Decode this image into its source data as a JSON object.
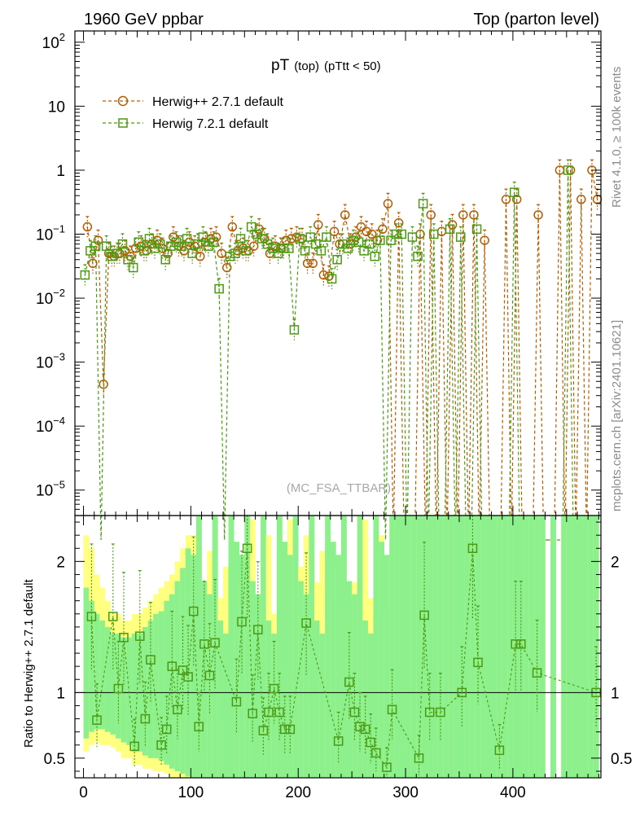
{
  "header": {
    "left": "1960 GeV ppbar",
    "right": "Top (parton level)"
  },
  "side_text": {
    "rivet": "Rivet 4.1.0, ≥ 100k events",
    "mcplots": "mcplots.cern.ch [arXiv:2401.10621]"
  },
  "watermark": "(MC_FSA_TTBAR)",
  "chart_data": [
    {
      "type": "scatter",
      "panel": "main",
      "title": "pT",
      "title_sub": "(top)",
      "title_cond": "(pTtt < 50)",
      "yscale": "log",
      "xlim": [
        -8,
        482
      ],
      "ylim": [
        4e-06,
        150
      ],
      "x_ticks": [
        "0",
        "100",
        "200",
        "300",
        "400"
      ],
      "y_ticks": [
        {
          "base": "10",
          "exp": "2",
          "value": 100
        },
        {
          "base": "10",
          "exp": "",
          "value": 10
        },
        {
          "base": "1",
          "exp": "",
          "value": 1
        },
        {
          "base": "10",
          "exp": "−1",
          "value": 0.1
        },
        {
          "base": "10",
          "exp": "−2",
          "value": 0.01
        },
        {
          "base": "10",
          "exp": "−3",
          "value": 0.001
        },
        {
          "base": "10",
          "exp": "−4",
          "value": 0.0001
        },
        {
          "base": "10",
          "exp": "−5",
          "value": 1e-05
        }
      ],
      "legend_position": "top-left",
      "series": [
        {
          "name": "Herwig++ 2.7.1 default",
          "color": "#b35c00",
          "marker": "circle",
          "x": [
            2.5,
            7.5,
            12.5,
            17.5,
            22.5,
            27.5,
            32.5,
            37.5,
            42.5,
            47.5,
            52.5,
            57.5,
            62.5,
            67.5,
            72.5,
            77.5,
            82.5,
            87.5,
            92.5,
            97.5,
            102.5,
            107.5,
            112.5,
            117.5,
            122.5,
            127.5,
            132.5,
            137.5,
            142.5,
            147.5,
            152.5,
            157.5,
            162.5,
            167.5,
            172.5,
            177.5,
            182.5,
            187.5,
            192.5,
            197.5,
            202.5,
            207.5,
            212.5,
            217.5,
            222.5,
            227.5,
            232.5,
            237.5,
            242.5,
            247.5,
            252.5,
            257.5,
            262.5,
            267.5,
            272.5,
            277.5,
            282.5,
            287.5,
            292.5,
            297.5,
            302.5,
            307.5,
            312.5,
            317.5,
            322.5,
            327.5,
            332.5,
            337.5,
            342.5,
            347.5,
            352.5,
            357.5,
            362.5,
            367.5,
            372.5,
            377.5,
            382.5,
            387.5,
            392.5,
            397.5,
            402.5,
            407.5,
            412.5,
            417.5,
            422.5,
            427.5,
            432.5,
            437.5,
            442.5,
            447.5,
            452.5,
            457.5,
            462.5,
            467.5,
            472.5,
            477.5
          ],
          "values": [
            0.13,
            0.035,
            0.08,
            0.00045,
            0.05,
            0.045,
            0.05,
            0.055,
            0.045,
            0.06,
            0.065,
            0.055,
            0.07,
            0.08,
            0.06,
            0.05,
            0.09,
            0.065,
            0.055,
            0.075,
            0.065,
            0.045,
            0.075,
            0.085,
            0.09,
            0.05,
            0.03,
            0.13,
            0.055,
            0.06,
            0.055,
            0.065,
            0.12,
            0.085,
            0.05,
            0.065,
            0.06,
            0.08,
            0.085,
            0.09,
            0.085,
            0.035,
            0.035,
            0.14,
            0.023,
            0.022,
            0.11,
            0.07,
            0.2,
            0.07,
            0.09,
            0.13,
            0.11,
            0.1,
            0.08,
            0.12,
            0.3,
            0.0,
            0.15,
            0.0,
            0.0,
            0.0,
            0.1,
            0.0,
            0.2,
            0.0,
            0.11,
            0.0,
            0.14,
            0.0,
            0.2,
            0.0,
            0.2,
            0.0,
            0.08,
            0.0,
            0.0,
            0.0,
            0.35,
            0.0,
            0.35,
            0.0,
            0.0,
            0.0,
            0.2,
            0.0,
            0.0,
            0.0,
            1.0,
            0.0,
            1.0,
            0.0,
            0.35,
            0.0,
            1.0,
            0.35
          ]
        },
        {
          "name": "Herwig 7.2.1 default",
          "color": "#4a9a12",
          "marker": "square",
          "x": [
            2.5,
            7.5,
            12.5,
            17.5,
            22.5,
            27.5,
            32.5,
            37.5,
            42.5,
            47.5,
            52.5,
            57.5,
            62.5,
            67.5,
            72.5,
            77.5,
            82.5,
            87.5,
            92.5,
            97.5,
            102.5,
            107.5,
            112.5,
            117.5,
            122.5,
            127.5,
            132.5,
            137.5,
            142.5,
            147.5,
            152.5,
            157.5,
            162.5,
            167.5,
            172.5,
            177.5,
            182.5,
            187.5,
            192.5,
            197.5,
            202.5,
            207.5,
            212.5,
            217.5,
            222.5,
            227.5,
            232.5,
            237.5,
            242.5,
            247.5,
            252.5,
            257.5,
            262.5,
            267.5,
            272.5,
            277.5,
            282.5,
            287.5,
            292.5,
            297.5,
            302.5,
            307.5,
            312.5,
            317.5,
            322.5,
            327.5,
            332.5,
            337.5,
            342.5,
            347.5,
            352.5,
            357.5,
            362.5,
            367.5,
            372.5,
            377.5,
            382.5,
            387.5,
            392.5,
            397.5,
            402.5,
            407.5,
            412.5,
            417.5,
            422.5,
            427.5,
            432.5,
            437.5,
            442.5,
            447.5,
            452.5,
            457.5,
            462.5,
            467.5,
            472.5,
            477.5
          ],
          "values": [
            0.023,
            0.055,
            0.065,
            0.0,
            0.065,
            0.045,
            0.05,
            0.07,
            0.04,
            0.03,
            0.075,
            0.055,
            0.085,
            0.06,
            0.07,
            0.04,
            0.065,
            0.075,
            0.065,
            0.085,
            0.05,
            0.07,
            0.09,
            0.065,
            0.075,
            0.014,
            0.0,
            0.045,
            0.05,
            0.085,
            0.055,
            0.13,
            0.1,
            0.085,
            0.07,
            0.06,
            0.05,
            0.06,
            0.06,
            0.0032,
            0.085,
            0.055,
            0.09,
            0.07,
            0.055,
            0.09,
            0.02,
            0.04,
            0.07,
            0.06,
            0.08,
            0.075,
            0.055,
            0.07,
            0.045,
            0.08,
            0.0,
            0.08,
            0.1,
            0.1,
            0.0,
            0.09,
            0.045,
            0.3,
            0.0,
            0.1,
            0.0,
            0.0,
            0.12,
            0.0,
            0.09,
            0.0,
            0.0,
            0.12,
            0.0,
            0.0,
            0.0,
            0.0,
            0.0,
            0.0,
            0.45,
            0.0,
            0.0,
            0.0,
            0.0,
            0.0,
            0.0,
            0.0,
            0.0,
            0.0,
            1.0,
            0.0,
            0.0,
            0.0,
            0.0,
            0.0
          ]
        }
      ]
    },
    {
      "type": "scatter",
      "panel": "ratio",
      "ylabel": "Ratio to Herwig++ 2.7.1 default",
      "xlim": [
        -8,
        482
      ],
      "ylim": [
        0.35,
        2.35
      ],
      "y_ticks": [
        "2",
        "1",
        "0.5"
      ],
      "y_tick_values": [
        2,
        1,
        0.5
      ],
      "reference_line": 1,
      "x": [
        7.5,
        12.5,
        27.5,
        32.5,
        37.5,
        47.5,
        52.5,
        57.5,
        62.5,
        72.5,
        77.5,
        82.5,
        87.5,
        92.5,
        97.5,
        102.5,
        107.5,
        112.5,
        117.5,
        122.5,
        142.5,
        147.5,
        152.5,
        157.5,
        162.5,
        167.5,
        172.5,
        177.5,
        182.5,
        187.5,
        192.5,
        207.5,
        237.5,
        247.5,
        252.5,
        257.5,
        262.5,
        267.5,
        272.5,
        282.5,
        287.5,
        312.5,
        317.5,
        322.5,
        332.5,
        352.5,
        362.5,
        367.5,
        387.5,
        402.5,
        407.5,
        422.5,
        477.5
      ],
      "values": [
        1.58,
        0.79,
        1.58,
        1.03,
        1.42,
        0.59,
        1.43,
        0.8,
        1.25,
        0.6,
        0.72,
        1.2,
        0.87,
        1.17,
        1.12,
        1.62,
        0.74,
        1.37,
        1.13,
        1.38,
        0.93,
        1.54,
        2.1,
        0.84,
        1.48,
        0.71,
        0.85,
        1.03,
        0.85,
        0.72,
        0.72,
        1.53,
        0.63,
        1.08,
        0.85,
        0.74,
        0.72,
        0.62,
        0.54,
        0.43,
        0.87,
        0.5,
        1.59,
        0.85,
        0.85,
        1.0,
        2.1,
        1.23,
        0.56,
        1.37,
        1.37,
        1.15,
        1.0
      ],
      "band_yellow_low": [
        0.55,
        0.6,
        0.62,
        0.6,
        0.6,
        0.58,
        0.55,
        0.5,
        0.5,
        0.45,
        0.45,
        0.42,
        0.42,
        0.4,
        0.4,
        0.38,
        0.35,
        0.35,
        0.35,
        0.35
      ],
      "band_yellow_high": [
        2.2,
        2.1,
        1.9,
        1.8,
        1.7,
        1.6,
        1.6,
        1.55,
        1.55,
        1.6,
        1.6,
        1.65,
        1.7,
        1.75,
        1.8,
        1.85,
        1.9,
        2.0,
        2.1,
        2.2
      ],
      "band_green_low": [
        0.65,
        0.7,
        0.72,
        0.72,
        0.7,
        0.68,
        0.65,
        0.62,
        0.6,
        0.55,
        0.55,
        0.52,
        0.5,
        0.5,
        0.48,
        0.45,
        0.42,
        0.4,
        0.38,
        0.36
      ],
      "band_green_high": [
        1.8,
        1.7,
        1.6,
        1.55,
        1.5,
        1.45,
        1.45,
        1.42,
        1.42,
        1.45,
        1.45,
        1.5,
        1.55,
        1.6,
        1.62,
        1.7,
        1.75,
        1.85,
        1.95,
        2.1
      ]
    }
  ]
}
